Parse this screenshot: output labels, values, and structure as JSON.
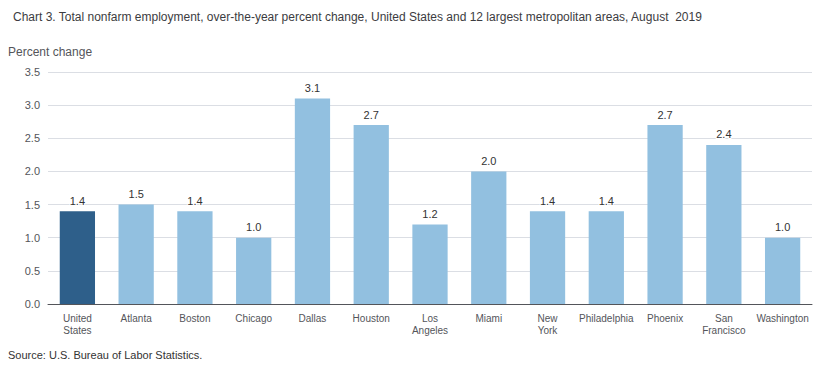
{
  "chart_data": {
    "type": "bar",
    "title": "Chart 3. Total nonfarm employment, over-the-year percent change, United States and 12 largest metropolitan areas, August  2019",
    "ylabel": "Percent change",
    "source": "Source: U.S. Bureau of Labor Statistics.",
    "categories": [
      "United\nStates",
      "Atlanta",
      "Boston",
      "Chicago",
      "Dallas",
      "Houston",
      "Los\nAngeles",
      "Miami",
      "New\nYork",
      "Philadelphia",
      "Phoenix",
      "San\nFrancisco",
      "Washington"
    ],
    "values": [
      1.4,
      1.5,
      1.4,
      1.0,
      3.1,
      2.7,
      1.2,
      2.0,
      1.4,
      1.4,
      2.7,
      2.4,
      1.0
    ],
    "value_labels": [
      "1.4",
      "1.5",
      "1.4",
      "1.0",
      "3.1",
      "2.7",
      "1.2",
      "2.0",
      "1.4",
      "1.4",
      "2.7",
      "2.4",
      "1.0"
    ],
    "colors": [
      "#2e5f8a",
      "#92c0e0",
      "#92c0e0",
      "#92c0e0",
      "#92c0e0",
      "#92c0e0",
      "#92c0e0",
      "#92c0e0",
      "#92c0e0",
      "#92c0e0",
      "#92c0e0",
      "#92c0e0",
      "#92c0e0"
    ],
    "ylim": [
      0.0,
      3.5
    ],
    "yticks": [
      {
        "value": 0.0,
        "label": "0.0"
      },
      {
        "value": 0.5,
        "label": "0.5"
      },
      {
        "value": 1.0,
        "label": "1.0"
      },
      {
        "value": 1.5,
        "label": "1.5"
      },
      {
        "value": 2.0,
        "label": "2.0"
      },
      {
        "value": 2.5,
        "label": "2.5"
      },
      {
        "value": 3.0,
        "label": "3.0"
      },
      {
        "value": 3.5,
        "label": "3.5"
      }
    ],
    "grid": true,
    "data_labels": true
  }
}
